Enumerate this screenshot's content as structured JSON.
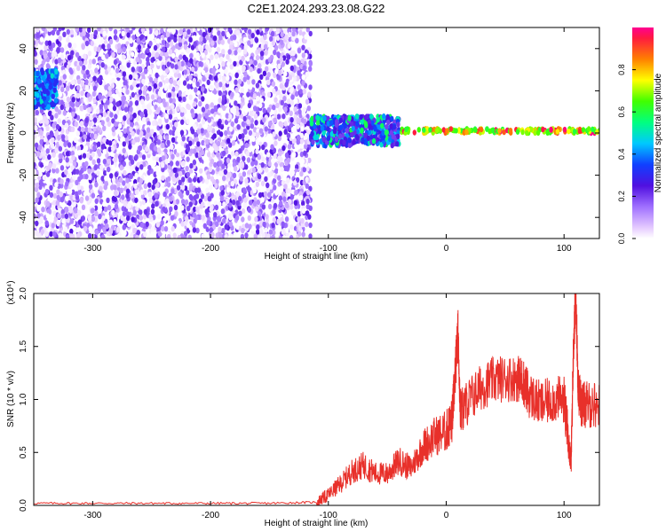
{
  "title": "C2E1.2024.293.23.08.G22",
  "colorbar": {
    "label": "Normalized spectral amplitude",
    "ticks": [
      "0.0",
      "0.2",
      "0.4",
      "0.6",
      "0.8"
    ]
  },
  "chart_data": [
    {
      "type": "heatmap",
      "xlabel": "Height of straight line (km)",
      "ylabel": "Frequency (Hz)",
      "xlim": [
        -350,
        130
      ],
      "ylim": [
        -50,
        50
      ],
      "xticks": [
        "-300",
        "-200",
        "-100",
        "0",
        "100"
      ],
      "yticks": [
        "-40",
        "-20",
        "0",
        "20",
        "40"
      ],
      "zlim": [
        0,
        1
      ],
      "regions": [
        {
          "description": "broadband scatter",
          "x": [
            -350,
            -115
          ],
          "y": [
            -50,
            50
          ],
          "amplitude": [
            0.0,
            0.25
          ]
        },
        {
          "description": "spread band",
          "x": [
            -115,
            -40
          ],
          "y": [
            -6,
            8
          ],
          "amplitude": [
            0.2,
            0.6
          ]
        },
        {
          "description": "narrow line",
          "x": [
            -40,
            130
          ],
          "y": [
            0,
            2
          ],
          "amplitude": [
            0.6,
            1.0
          ]
        },
        {
          "description": "edge streak",
          "x": [
            -350,
            -330
          ],
          "y": [
            12,
            30
          ],
          "amplitude": [
            0.3,
            0.5
          ]
        }
      ]
    },
    {
      "type": "line",
      "xlabel": "Height of straight line (km)",
      "ylabel": "SNR (10 * v/v)",
      "y_multiplier": "(x10⁴)",
      "xlim": [
        -350,
        130
      ],
      "ylim": [
        0,
        2.0
      ],
      "xticks": [
        "-300",
        "-200",
        "-100",
        "0",
        "100"
      ],
      "yticks": [
        "0.0",
        "0.5",
        "1.0",
        "1.5",
        "2.0"
      ],
      "color": "#e8302a",
      "x": [
        -350,
        -300,
        -250,
        -200,
        -150,
        -110,
        -100,
        -90,
        -80,
        -70,
        -60,
        -50,
        -40,
        -30,
        -20,
        -10,
        0,
        5,
        8,
        10,
        12,
        20,
        30,
        40,
        50,
        60,
        65,
        70,
        80,
        90,
        100,
        103,
        106,
        108,
        110,
        112,
        115,
        120,
        130
      ],
      "y": [
        0.02,
        0.02,
        0.02,
        0.02,
        0.02,
        0.03,
        0.1,
        0.2,
        0.32,
        0.38,
        0.3,
        0.3,
        0.42,
        0.35,
        0.55,
        0.65,
        0.7,
        0.8,
        1.3,
        1.64,
        0.88,
        1.0,
        1.12,
        1.18,
        1.2,
        1.2,
        1.18,
        1.05,
        0.95,
        1.0,
        1.0,
        0.7,
        0.4,
        1.5,
        2.0,
        1.1,
        0.95,
        0.95,
        0.95
      ]
    }
  ]
}
